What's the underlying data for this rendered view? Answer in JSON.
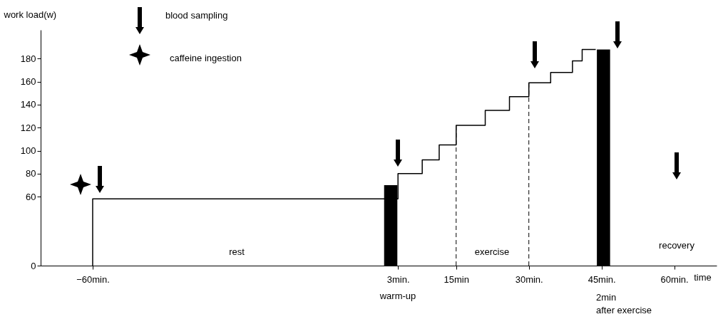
{
  "chart_data": {
    "type": "step",
    "xlabel": "time",
    "ylabel": "work load(w)",
    "xlim": [
      -70,
      68
    ],
    "xticks": [
      {
        "value": -60,
        "label": "−60min."
      },
      {
        "value": 3,
        "label": "3min."
      },
      {
        "value": 15,
        "label": "15min"
      },
      {
        "value": 30,
        "label": "30min."
      },
      {
        "value": 45,
        "label": "45min."
      },
      {
        "value": 60,
        "label": "60min."
      }
    ],
    "ylim": [
      0,
      205
    ],
    "yticks": [
      0,
      60,
      80,
      100,
      120,
      140,
      160,
      180
    ],
    "series": [
      {
        "color": "#000000",
        "x": [
          -60,
          -60,
          3,
          8,
          11.5,
          15,
          21,
          26,
          30,
          34.5,
          39,
          41,
          43.8
        ],
        "values": [
          0,
          58,
          80,
          92,
          105,
          122,
          135,
          147,
          159,
          168,
          178,
          188,
          188
        ]
      },
      {
        "type": "bar",
        "color": "#000000",
        "x": [
          1.5,
          45.4
        ],
        "values": [
          70,
          188
        ]
      }
    ],
    "ref_lines": [
      {
        "axis": "x",
        "value": 15,
        "line_style": "dashed"
      },
      {
        "axis": "x",
        "value": 30,
        "line_style": "dashed"
      }
    ],
    "annotations": [
      "blood sampling",
      "caffeine ingestion",
      "rest",
      "exercise",
      "recovery",
      "warm-up",
      "2min",
      "after exercise"
    ]
  }
}
